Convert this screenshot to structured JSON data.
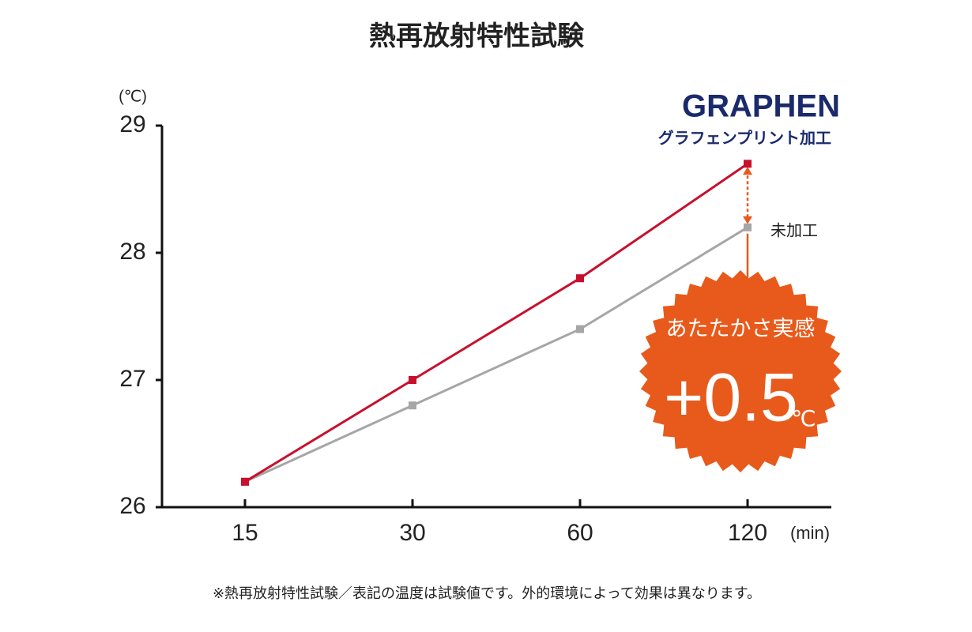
{
  "chart_data": {
    "type": "line",
    "title": "熱再放射特性試験",
    "y_label": "(℃)",
    "x_label": "(min)",
    "categories": [
      "15",
      "30",
      "60",
      "120"
    ],
    "series": [
      {
        "name": "グラフェンプリント加工",
        "brand": "GRAPHEN",
        "color": "#c8102e",
        "values": [
          26.2,
          27.0,
          27.8,
          28.7
        ]
      },
      {
        "name": "未加工",
        "color": "#a6a6a6",
        "values": [
          26.2,
          26.8,
          27.4,
          28.2
        ]
      }
    ],
    "ylim": [
      26,
      29
    ],
    "yticks": [
      26,
      27,
      28,
      29
    ],
    "grid": false,
    "badge": {
      "text": "あたたかさ実感",
      "value_label": "+0.5",
      "unit": "℃",
      "color": "#e85a1b"
    },
    "footnote": "※熱再放射特性試験／表記の温度は試験値です。外的環境によって効果は異なります。"
  }
}
